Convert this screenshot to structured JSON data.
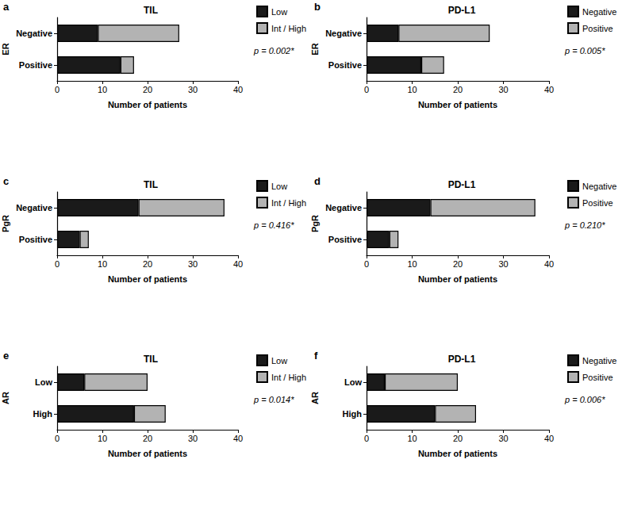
{
  "chart_data": [
    {
      "type": "bar",
      "orientation": "horizontal",
      "stacked": true,
      "grid": false,
      "legend": "upper right",
      "panel": "a",
      "title": "TIL",
      "ylabel": "ER",
      "xlabel": "Number of patients",
      "categories": [
        "Negative",
        "Positive"
      ],
      "series": [
        {
          "name": "Low",
          "color": "#1a1a1a",
          "values": [
            9,
            14
          ]
        },
        {
          "name": "Int / High",
          "color": "#b3b3b3",
          "values": [
            18,
            3
          ]
        }
      ],
      "xlim": [
        0,
        40
      ],
      "xticks": [
        0,
        10,
        20,
        30,
        40
      ],
      "annotation": "p = 0.002*"
    },
    {
      "type": "bar",
      "orientation": "horizontal",
      "stacked": true,
      "grid": false,
      "legend": "upper right",
      "panel": "b",
      "title": "PD-L1",
      "ylabel": "ER",
      "xlabel": "Number of patients",
      "categories": [
        "Negative",
        "Positive"
      ],
      "series": [
        {
          "name": "Negative",
          "color": "#1a1a1a",
          "values": [
            7,
            12
          ]
        },
        {
          "name": "Positive",
          "color": "#b3b3b3",
          "values": [
            20,
            5
          ]
        }
      ],
      "xlim": [
        0,
        40
      ],
      "xticks": [
        0,
        10,
        20,
        30,
        40
      ],
      "annotation": "p = 0.005*"
    },
    {
      "type": "bar",
      "orientation": "horizontal",
      "stacked": true,
      "grid": false,
      "legend": "upper right",
      "panel": "c",
      "title": "TIL",
      "ylabel": "PgR",
      "xlabel": "Number of patients",
      "categories": [
        "Negative",
        "Positive"
      ],
      "series": [
        {
          "name": "Low",
          "color": "#1a1a1a",
          "values": [
            18,
            5
          ]
        },
        {
          "name": "Int / High",
          "color": "#b3b3b3",
          "values": [
            19,
            2
          ]
        }
      ],
      "xlim": [
        0,
        40
      ],
      "xticks": [
        0,
        10,
        20,
        30,
        40
      ],
      "annotation": "p = 0.416*"
    },
    {
      "type": "bar",
      "orientation": "horizontal",
      "stacked": true,
      "grid": false,
      "legend": "upper right",
      "panel": "d",
      "title": "PD-L1",
      "ylabel": "PgR",
      "xlabel": "Number of patients",
      "categories": [
        "Negative",
        "Positive"
      ],
      "series": [
        {
          "name": "Negative",
          "color": "#1a1a1a",
          "values": [
            14,
            5
          ]
        },
        {
          "name": "Positive",
          "color": "#b3b3b3",
          "values": [
            23,
            2
          ]
        }
      ],
      "xlim": [
        0,
        40
      ],
      "xticks": [
        0,
        10,
        20,
        30,
        40
      ],
      "annotation": "p = 0.210*"
    },
    {
      "type": "bar",
      "orientation": "horizontal",
      "stacked": true,
      "grid": false,
      "legend": "upper right",
      "panel": "e",
      "title": "TIL",
      "ylabel": "AR",
      "xlabel": "Number of patients",
      "categories": [
        "Low",
        "High"
      ],
      "series": [
        {
          "name": "Low",
          "color": "#1a1a1a",
          "values": [
            6,
            17
          ]
        },
        {
          "name": "Int / High",
          "color": "#b3b3b3",
          "values": [
            14,
            7
          ]
        }
      ],
      "xlim": [
        0,
        40
      ],
      "xticks": [
        0,
        10,
        20,
        30,
        40
      ],
      "annotation": "p = 0.014*"
    },
    {
      "type": "bar",
      "orientation": "horizontal",
      "stacked": true,
      "grid": false,
      "legend": "upper right",
      "panel": "f",
      "title": "PD-L1",
      "ylabel": "AR",
      "xlabel": "Number of patients",
      "categories": [
        "Low",
        "High"
      ],
      "series": [
        {
          "name": "Negative",
          "color": "#1a1a1a",
          "values": [
            4,
            15
          ]
        },
        {
          "name": "Positive",
          "color": "#b3b3b3",
          "values": [
            16,
            9
          ]
        }
      ],
      "xlim": [
        0,
        40
      ],
      "xticks": [
        0,
        10,
        20,
        30,
        40
      ],
      "annotation": "p = 0.006*"
    }
  ]
}
